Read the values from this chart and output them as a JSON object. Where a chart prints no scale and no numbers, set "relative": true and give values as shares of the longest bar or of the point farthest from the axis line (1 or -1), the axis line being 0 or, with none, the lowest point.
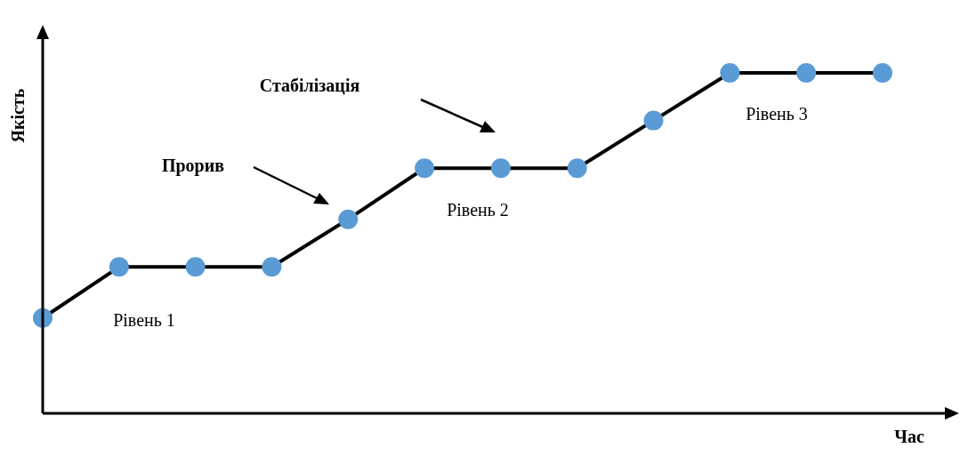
{
  "chart_data": {
    "type": "line",
    "relative": true,
    "xlabel": "Час",
    "ylabel": "Якість",
    "categories": [
      null,
      null,
      null,
      null,
      null,
      null,
      null,
      null,
      null,
      null,
      null,
      null
    ],
    "series": [
      {
        "color": "#000000",
        "colors": [
          "#5b9bd5",
          "#5b9bd5",
          "#5b9bd5",
          "#5b9bd5",
          "#5b9bd5",
          "#5b9bd5",
          "#5b9bd5",
          "#5b9bd5",
          "#5b9bd5",
          "#5b9bd5",
          "#5b9bd5",
          "#5b9bd5"
        ],
        "values": [
          0.28,
          0.43,
          0.43,
          0.43,
          0.57,
          0.72,
          0.72,
          0.72,
          0.86,
          1,
          1,
          1
        ]
      }
    ],
    "marker": "circle",
    "line_style": "solid",
    "legend": false,
    "annotations": [
      "Прорив",
      "Стабілізація",
      "Рівень 1",
      "Рівень 2",
      "Рівень 3"
    ]
  }
}
